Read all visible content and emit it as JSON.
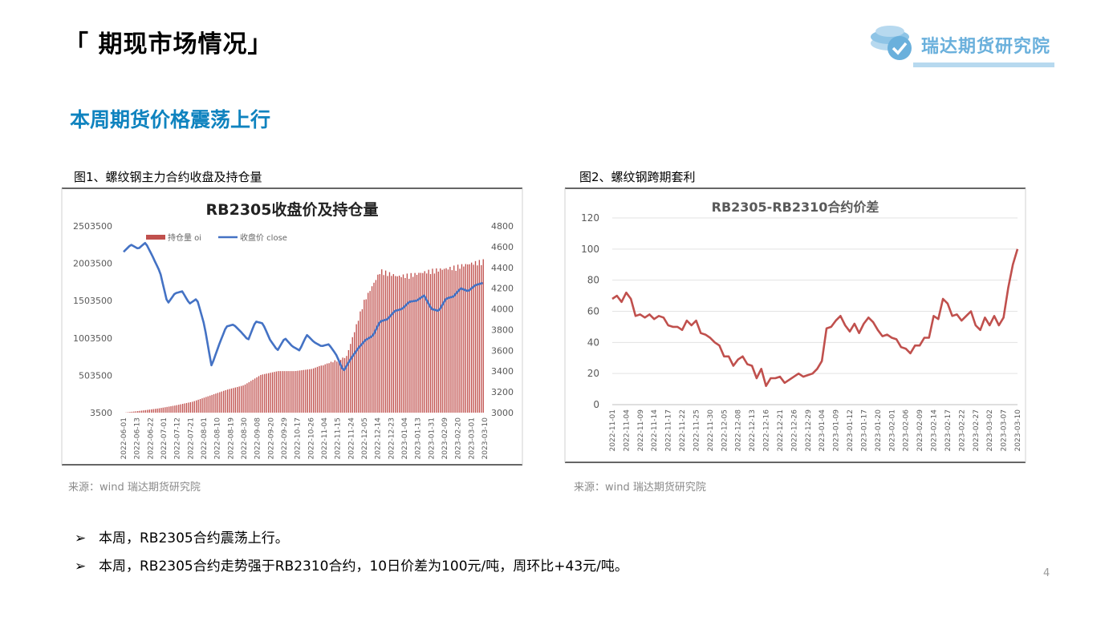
{
  "header": {
    "title": "「 期现市场情况」",
    "logo_text": "瑞达期货研究院",
    "page_number": "4"
  },
  "section": {
    "subtitle": "本周期货价格震荡上行"
  },
  "figure1": {
    "caption": "图1、螺纹钢主力合约收盘及持仓量",
    "source": "来源：wind 瑞达期货研究院"
  },
  "figure2": {
    "caption": "图2、螺纹钢跨期套利",
    "source": "来源：wind 瑞达期货研究院"
  },
  "bullets": [
    "本周，RB2305合约震荡上行。",
    "本周，RB2305合约走势强于RB2310合约，10日价差为100元/吨，周环比+43元/吨。"
  ],
  "chart_data": [
    {
      "type": "bar+line",
      "title": "RB2305收盘价及持仓量",
      "colors": {
        "bars": "#c0504d",
        "line": "#4472c4"
      },
      "legend": {
        "placement": "top-left",
        "entries": [
          "持仓量 oi",
          "收盘价 close"
        ]
      },
      "left_axis": {
        "ylim": [
          3500,
          2503500
        ],
        "ticks": [
          "2503500",
          "2003500",
          "1503500",
          "1003500",
          "503500",
          "3500"
        ]
      },
      "right_axis": {
        "ylim": [
          3000,
          4800
        ],
        "ticks": [
          "4800",
          "4600",
          "4400",
          "4200",
          "4000",
          "3800",
          "3600",
          "3400",
          "3200",
          "3000"
        ]
      },
      "x_tick_labels": [
        "2022-06-01",
        "2022-06-13",
        "2022-06-22",
        "2022-07-01",
        "2022-07-12",
        "2022-07-21",
        "2022-08-01",
        "2022-08-10",
        "2022-08-19",
        "2022-08-30",
        "2022-09-08",
        "2022-09-20",
        "2022-09-29",
        "2022-10-17",
        "2022-10-26",
        "2022-11-04",
        "2022-11-15",
        "2022-11-24",
        "2022-12-05",
        "2022-12-14",
        "2022-12-23",
        "2023-01-04",
        "2023-01-13",
        "2023-01-31",
        "2023-02-09",
        "2023-02-20",
        "2023-03-01",
        "2023-03-10"
      ],
      "series": [
        {
          "name": "持仓量 oi",
          "kind": "bar",
          "anchors": [
            3500,
            30000,
            60000,
            100000,
            150000,
            230000,
            310000,
            370000,
            510000,
            560000,
            560000,
            590000,
            680000,
            760000,
            1500000,
            1930000,
            1850000,
            1880000,
            1930000,
            1960000,
            2010000,
            2060000
          ]
        },
        {
          "name": "收盘价 close",
          "kind": "line",
          "anchors": [
            4550,
            4620,
            4580,
            4640,
            4500,
            4350,
            4050,
            4150,
            4170,
            4050,
            4100,
            3850,
            3450,
            3650,
            3830,
            3850,
            3780,
            3700,
            3880,
            3860,
            3700,
            3600,
            3720,
            3640,
            3600,
            3750,
            3680,
            3640,
            3660,
            3560,
            3400,
            3520,
            3620,
            3700,
            3740,
            3880,
            3900,
            3980,
            4000,
            4070,
            4080,
            4130,
            4000,
            3980,
            4100,
            4120,
            4200,
            4170,
            4230,
            4250
          ]
        }
      ]
    },
    {
      "type": "line",
      "title": "RB2305-RB2310合约价差",
      "colors": {
        "line": "#c0504d"
      },
      "ylim": [
        0,
        120
      ],
      "y_ticks": [
        "120",
        "100",
        "80",
        "60",
        "40",
        "20",
        "0"
      ],
      "x_tick_labels": [
        "2022-11-01",
        "2022-11-04",
        "2022-11-09",
        "2022-11-14",
        "2022-11-17",
        "2022-11-22",
        "2022-11-25",
        "2022-11-30",
        "2022-12-05",
        "2022-12-08",
        "2022-12-13",
        "2022-12-16",
        "2022-12-21",
        "2022-12-26",
        "2022-12-29",
        "2023-01-04",
        "2023-01-09",
        "2023-01-12",
        "2023-01-17",
        "2023-01-20",
        "2023-02-01",
        "2023-02-06",
        "2023-02-09",
        "2023-02-14",
        "2023-02-17",
        "2023-02-22",
        "2023-02-27",
        "2023-03-02",
        "2023-03-07",
        "2023-03-10"
      ],
      "values": [
        68,
        70,
        66,
        72,
        68,
        57,
        58,
        56,
        58,
        55,
        57,
        56,
        51,
        50,
        50,
        48,
        54,
        51,
        54,
        46,
        45,
        43,
        40,
        38,
        31,
        31,
        25,
        29,
        31,
        26,
        25,
        17,
        23,
        12,
        17,
        17,
        18,
        14,
        16,
        18,
        20,
        18,
        19,
        20,
        23,
        28,
        49,
        50,
        54,
        57,
        51,
        47,
        52,
        46,
        52,
        56,
        53,
        48,
        44,
        45,
        43,
        42,
        37,
        36,
        33,
        38,
        38,
        43,
        43,
        57,
        55,
        68,
        65,
        57,
        58,
        54,
        57,
        60,
        51,
        48,
        56,
        51,
        57,
        51,
        56,
        75,
        90,
        100
      ]
    }
  ]
}
